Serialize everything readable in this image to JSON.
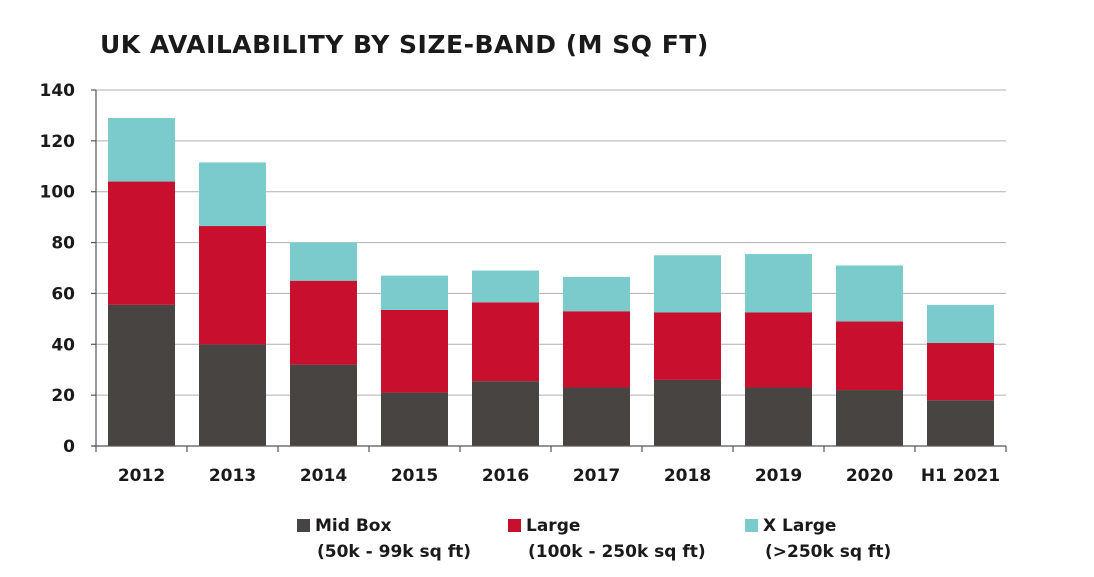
{
  "chart_data": {
    "type": "bar",
    "stacked": true,
    "title": "UK AVAILABILITY BY SIZE-BAND (M SQ FT)",
    "xlabel": "",
    "ylabel": "",
    "categories": [
      "2012",
      "2013",
      "2014",
      "2015",
      "2016",
      "2017",
      "2018",
      "2019",
      "2020",
      "H1 2021"
    ],
    "ylim": [
      0,
      140
    ],
    "yticks": [
      0,
      20,
      40,
      60,
      80,
      100,
      120,
      140
    ],
    "grid": true,
    "legend_position": "bottom",
    "series": [
      {
        "name": "Mid Box",
        "range": "(50k - 99k sq ft)",
        "color": "#474442",
        "values": [
          55.5,
          40,
          32,
          21,
          25.5,
          23,
          26,
          23,
          22,
          18
        ]
      },
      {
        "name": "Large",
        "range": "(100k - 250k sq ft)",
        "color": "#c8102e",
        "values": [
          48.5,
          46.5,
          33,
          32.5,
          31,
          30,
          26.5,
          29.5,
          27,
          22.5
        ]
      },
      {
        "name": "X Large",
        "range": "(>250k sq ft)",
        "color": "#7ccbcc",
        "values": [
          25,
          25,
          15,
          13.5,
          12.5,
          13.5,
          22.5,
          23,
          22,
          15
        ]
      }
    ]
  }
}
